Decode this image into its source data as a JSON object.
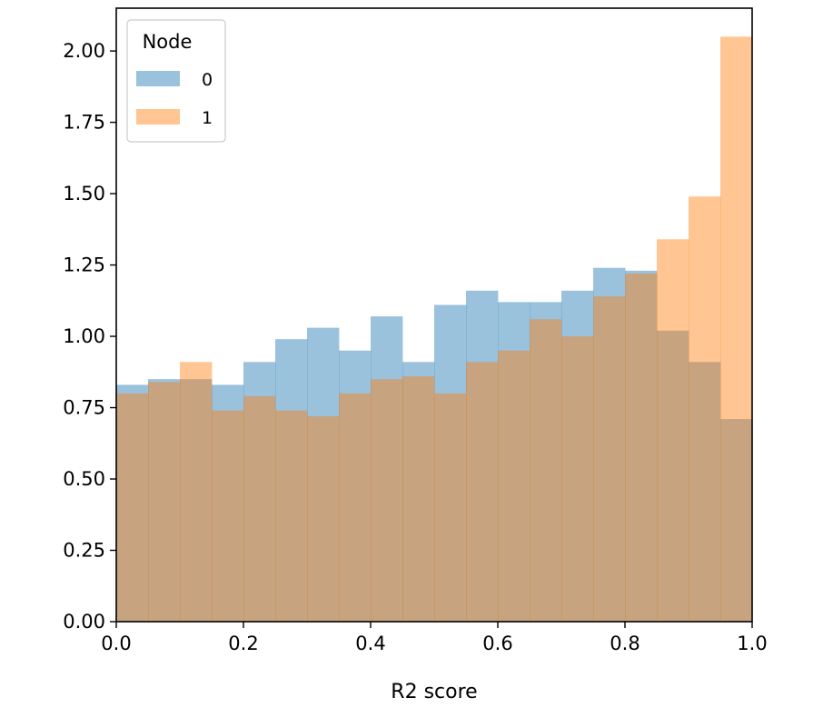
{
  "chart_data": {
    "type": "bar",
    "subtype": "overlapping-histogram",
    "title": "",
    "xlabel": "R2 score",
    "ylabel": "",
    "xlim": [
      0.0,
      1.0
    ],
    "ylim": [
      0.0,
      2.15
    ],
    "xticks": [
      "0.0",
      "0.2",
      "0.4",
      "0.6",
      "0.8",
      "1.0"
    ],
    "yticks": [
      "0.00",
      "0.25",
      "0.50",
      "0.75",
      "1.00",
      "1.25",
      "1.50",
      "1.75",
      "2.00"
    ],
    "grid": false,
    "bin_edges": [
      0.0,
      0.05,
      0.1,
      0.15,
      0.2,
      0.25,
      0.3,
      0.35,
      0.4,
      0.45,
      0.5,
      0.55,
      0.6,
      0.65,
      0.7,
      0.75,
      0.8,
      0.85,
      0.9,
      0.95,
      1.0
    ],
    "legend": {
      "title": "Node",
      "placement": "upper-left"
    },
    "series": [
      {
        "name": "0",
        "color": "#1f77b4",
        "opacity": 0.45,
        "values": [
          0.83,
          0.85,
          0.85,
          0.83,
          0.91,
          0.99,
          1.03,
          0.95,
          1.07,
          0.91,
          1.11,
          1.16,
          1.12,
          1.12,
          1.16,
          1.24,
          1.23,
          1.02,
          0.91,
          0.71
        ]
      },
      {
        "name": "1",
        "color": "#ff7f0e",
        "opacity": 0.45,
        "values": [
          0.8,
          0.84,
          0.91,
          0.74,
          0.79,
          0.74,
          0.72,
          0.8,
          0.85,
          0.86,
          0.8,
          0.91,
          0.95,
          1.06,
          1.0,
          1.14,
          1.22,
          1.34,
          1.49,
          2.05
        ]
      }
    ]
  }
}
